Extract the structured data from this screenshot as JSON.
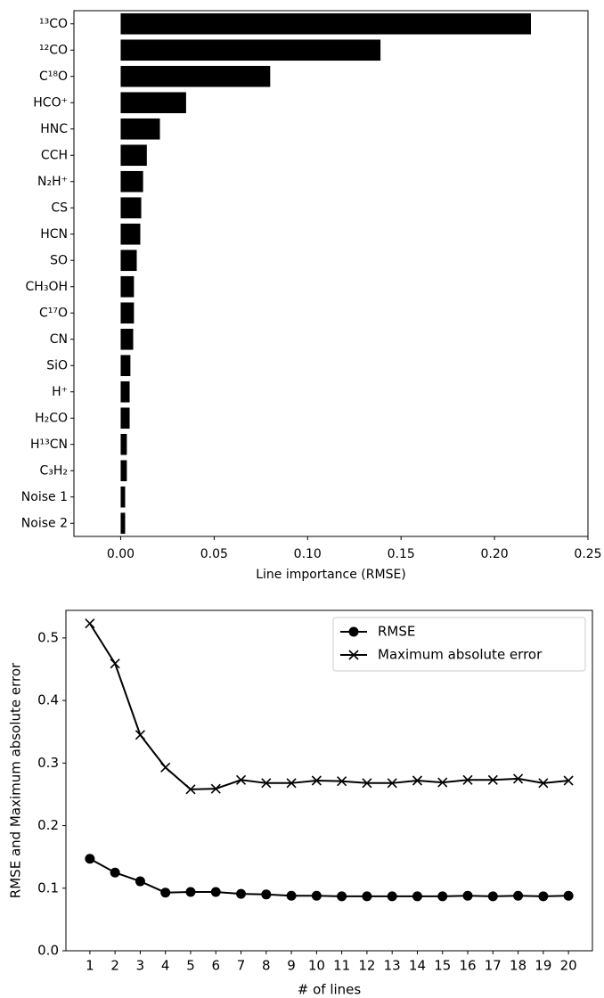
{
  "chart_data": [
    {
      "type": "barh",
      "xlabel": "Line importance (RMSE)",
      "categories": [
        "¹³CO",
        "¹²CO",
        "C¹⁸O",
        "HCO⁺",
        "HNC",
        "CCH",
        "N₂H⁺",
        "CS",
        "HCN",
        "SO",
        "CH₃OH",
        "C¹⁷O",
        "CN",
        "SiO",
        "H⁺",
        "H₂CO",
        "H¹³CN",
        "C₃H₂",
        "Noise 1",
        "Noise 2"
      ],
      "values": [
        0.2195,
        0.139,
        0.08,
        0.035,
        0.021,
        0.014,
        0.012,
        0.011,
        0.0105,
        0.0086,
        0.0071,
        0.0071,
        0.0067,
        0.0052,
        0.0048,
        0.0048,
        0.0033,
        0.0033,
        0.0024,
        0.0024
      ],
      "color": "#000000",
      "xlim": [
        -0.025,
        0.25
      ],
      "xticks": [
        {
          "value": 0,
          "label": "0.00"
        },
        {
          "value": 0.05,
          "label": "0.05"
        },
        {
          "value": 0.1,
          "label": "0.10"
        },
        {
          "value": 0.15,
          "label": "0.15"
        },
        {
          "value": 0.2,
          "label": "0.20"
        },
        {
          "value": 0.25,
          "label": "0.25"
        }
      ]
    },
    {
      "type": "line",
      "xlabel": "# of lines",
      "ylabel": "RMSE and Maximum absolute error",
      "x": [
        1,
        2,
        3,
        4,
        5,
        6,
        7,
        8,
        9,
        10,
        11,
        12,
        13,
        14,
        15,
        16,
        17,
        18,
        19,
        20
      ],
      "series": [
        {
          "name": "RMSE",
          "color": "#000000",
          "marker": "o",
          "values": [
            0.147,
            0.125,
            0.111,
            0.093,
            0.094,
            0.094,
            0.091,
            0.09,
            0.088,
            0.088,
            0.087,
            0.087,
            0.087,
            0.087,
            0.087,
            0.088,
            0.087,
            0.088,
            0.087,
            0.088
          ]
        },
        {
          "name": "Maximum absolute error",
          "color": "#000000",
          "marker": "x",
          "values": [
            0.523,
            0.459,
            0.345,
            0.293,
            0.258,
            0.259,
            0.273,
            0.268,
            0.268,
            0.272,
            0.271,
            0.268,
            0.268,
            0.272,
            0.269,
            0.273,
            0.273,
            0.275,
            0.268,
            0.272
          ]
        }
      ],
      "xlim": [
        0.05,
        20.95
      ],
      "xticks": [
        1,
        2,
        3,
        4,
        5,
        6,
        7,
        8,
        9,
        10,
        11,
        12,
        13,
        14,
        15,
        16,
        17,
        18,
        19,
        20
      ],
      "ylim": [
        0,
        0.544
      ],
      "yticks": [
        {
          "value": 0,
          "label": "0.0"
        },
        {
          "value": 0.1,
          "label": "0.1"
        },
        {
          "value": 0.2,
          "label": "0.2"
        },
        {
          "value": 0.3,
          "label": "0.3"
        },
        {
          "value": 0.4,
          "label": "0.4"
        },
        {
          "value": 0.5,
          "label": "0.5"
        }
      ],
      "legend": "upper right"
    }
  ]
}
